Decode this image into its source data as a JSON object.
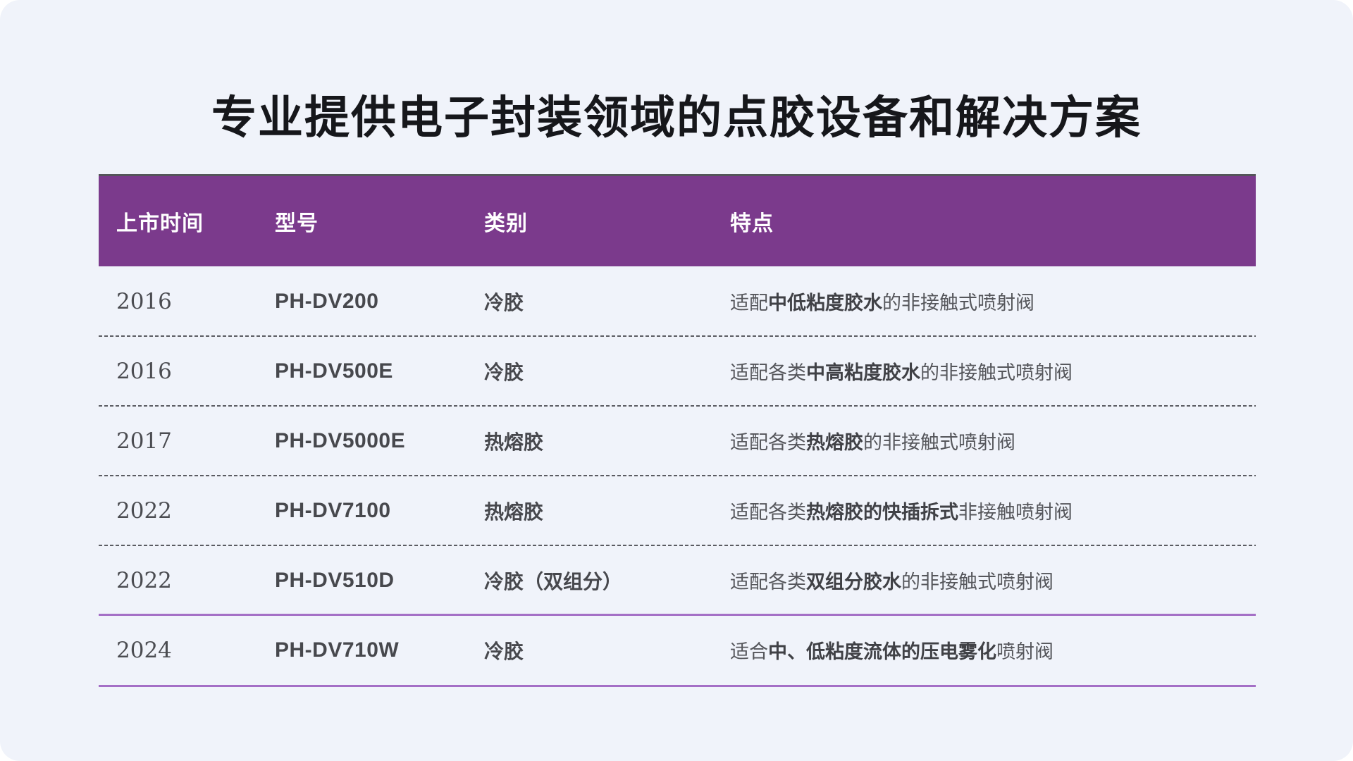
{
  "title": "专业提供电子封装领域的点胶设备和解决方案",
  "colors": {
    "page_bg": "#f0f3fa",
    "header_bg": "#7b3a8c",
    "header_text": "#ffffff",
    "header_top_border": "#55555a",
    "dashed_separator": "#5b5c62",
    "accent_separator": "#a46fc6",
    "title_text": "#16171b",
    "body_text": "#55565b"
  },
  "table": {
    "columns": [
      {
        "key": "year",
        "label": "上市时间"
      },
      {
        "key": "model",
        "label": "型号"
      },
      {
        "key": "category",
        "label": "类别"
      },
      {
        "key": "feature",
        "label": "特点"
      }
    ],
    "rows": [
      {
        "year": "2016",
        "model": "PH-DV200",
        "category": "冷胶",
        "feature_segments": [
          {
            "text": "适配",
            "bold": false
          },
          {
            "text": "中低粘度胶水",
            "bold": true
          },
          {
            "text": "的非接触式喷射阀",
            "bold": false
          }
        ]
      },
      {
        "year": "2016",
        "model": "PH-DV500E",
        "category": "冷胶",
        "feature_segments": [
          {
            "text": "适配各类",
            "bold": false
          },
          {
            "text": "中高粘度胶水",
            "bold": true
          },
          {
            "text": "的非接触式喷射阀",
            "bold": false
          }
        ]
      },
      {
        "year": "2017",
        "model": "PH-DV5000E",
        "category": "热熔胶",
        "feature_segments": [
          {
            "text": "适配各类",
            "bold": false
          },
          {
            "text": "热熔胶",
            "bold": true
          },
          {
            "text": "的非接触式喷射阀",
            "bold": false
          }
        ]
      },
      {
        "year": "2022",
        "model": "PH-DV7100",
        "category": "热熔胶",
        "feature_segments": [
          {
            "text": "适配各类",
            "bold": false
          },
          {
            "text": "热熔胶的快插拆式",
            "bold": true
          },
          {
            "text": "非接触喷射阀",
            "bold": false
          }
        ]
      },
      {
        "year": "2022",
        "model": "PH-DV510D",
        "category": "冷胶（双组分）",
        "feature_segments": [
          {
            "text": "适配各类",
            "bold": false
          },
          {
            "text": "双组分胶水",
            "bold": true
          },
          {
            "text": "的非接触式喷射阀",
            "bold": false
          }
        ]
      },
      {
        "year": "2024",
        "model": "PH-DV710W",
        "category": "冷胶",
        "feature_segments": [
          {
            "text": "适合",
            "bold": false
          },
          {
            "text": "中、低粘度流体的压电雾化",
            "bold": true
          },
          {
            "text": "喷射阀",
            "bold": false
          }
        ]
      }
    ]
  }
}
